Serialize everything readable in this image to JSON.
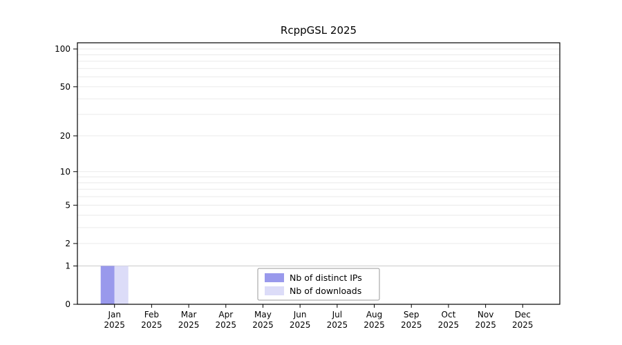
{
  "title": "RcppGSL 2025",
  "chart_data": {
    "type": "bar",
    "title": "RcppGSL 2025",
    "categories": [
      "Jan",
      "Feb",
      "Mar",
      "Apr",
      "May",
      "Jun",
      "Jul",
      "Aug",
      "Sep",
      "Oct",
      "Nov",
      "Dec"
    ],
    "year": "2025",
    "series": [
      {
        "name": "Nb of distinct IPs",
        "color": "#9999ec",
        "values": [
          1,
          0,
          0,
          0,
          0,
          0,
          0,
          0,
          0,
          0,
          0,
          0
        ]
      },
      {
        "name": "Nb of downloads",
        "color": "#dcdcf8",
        "values": [
          1,
          0,
          0,
          0,
          0,
          0,
          0,
          0,
          0,
          0,
          0,
          0
        ]
      }
    ],
    "xlabel": "",
    "ylabel": "",
    "yscale": "log1p",
    "ylim": [
      0,
      100
    ],
    "yticks": [
      0,
      1,
      2,
      5,
      10,
      20,
      50,
      100
    ],
    "minor_gridlines": [
      1,
      2,
      3,
      4,
      5,
      6,
      7,
      8,
      9,
      10,
      20,
      30,
      40,
      50,
      60,
      70,
      80,
      90,
      100
    ],
    "grid": true,
    "legend_position": "bottom-center"
  },
  "colors": {
    "background": "#ffffff",
    "frame": "#000000",
    "text": "#000000",
    "grid_minor": "#eaeaea",
    "grid_baseline": "#c8c8c8",
    "legend_border": "#999999",
    "legend_fill": "#ffffff"
  }
}
